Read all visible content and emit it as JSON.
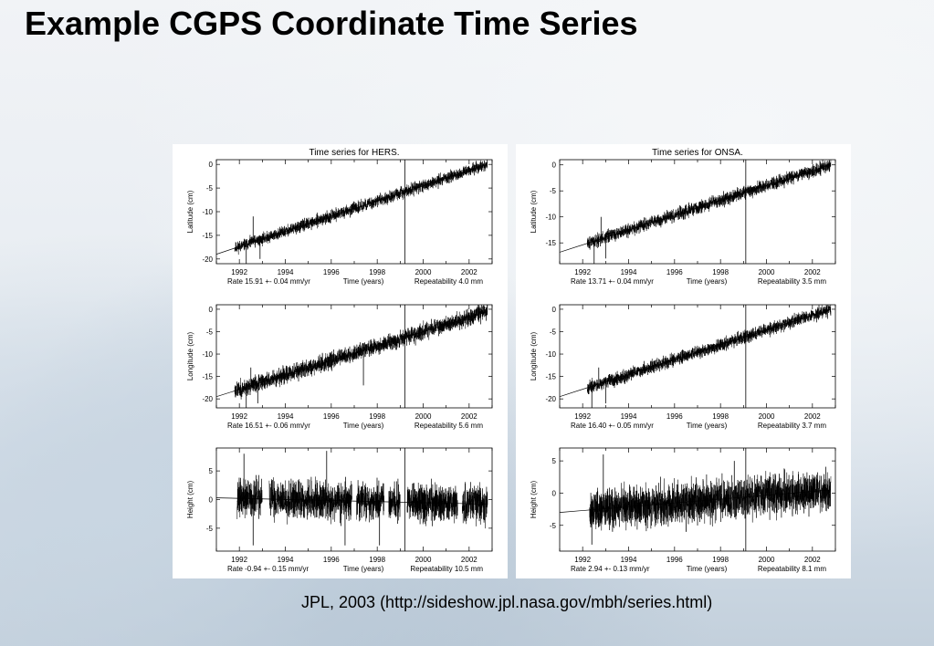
{
  "title": "Example CGPS Coordinate Time Series",
  "caption": "JPL, 2003 (http://sideshow.jpl.nasa.gov/mbh/series.html)",
  "colors": {
    "background": "#e9eef3",
    "panel": "#ffffff",
    "ink": "#000000"
  },
  "chart_data": [
    {
      "station": "HERS",
      "title": "Time series for HERS.",
      "type": "scatter",
      "xlim": [
        1991.0,
        2003.0
      ],
      "xticks": [
        1992,
        1994,
        1996,
        1998,
        2000,
        2002
      ],
      "xlabel": "Time (years)",
      "vertical_line_x": 1999.2,
      "panels": [
        {
          "id": "lat",
          "ylabel": "Latitude (cm)",
          "ylim": [
            -21,
            1
          ],
          "yticks": [
            0,
            -5,
            -10,
            -15,
            -20
          ],
          "rate_text": "Rate  15.91 +- 0.04 mm/yr",
          "repeat_text": "Repeatability 4.0 mm",
          "trend": [
            [
              1991.0,
              -19.0
            ],
            [
              2002.8,
              0.0
            ]
          ],
          "segments": [
            [
              1991.8,
              2002.8
            ]
          ],
          "noise": 0.6,
          "spikes": [
            [
              1992.3,
              -22
            ],
            [
              1992.6,
              -11
            ],
            [
              1992.9,
              -20
            ]
          ],
          "seed": 11
        },
        {
          "id": "lon",
          "ylabel": "Longitude (cm)",
          "ylim": [
            -22,
            1
          ],
          "yticks": [
            0,
            -5,
            -10,
            -15,
            -20
          ],
          "rate_text": "Rate  16.51 +- 0.06 mm/yr",
          "repeat_text": "Repeatability 5.6 mm",
          "trend": [
            [
              1991.0,
              -19.5
            ],
            [
              2002.8,
              -0.5
            ]
          ],
          "segments": [
            [
              1991.8,
              2002.8
            ]
          ],
          "noise": 0.9,
          "spikes": [
            [
              1992.3,
              -24
            ],
            [
              1992.5,
              -13
            ],
            [
              1992.8,
              -21
            ],
            [
              1996.4,
              -9
            ],
            [
              1997.4,
              -17
            ]
          ],
          "seed": 23
        },
        {
          "id": "hgt",
          "ylabel": "Height (cm)",
          "ylim": [
            -9,
            9
          ],
          "yticks": [
            5,
            0,
            -5
          ],
          "rate_text": "Rate  -0.94 +- 0.15 mm/yr",
          "repeat_text": "Repeatability 10.5 mm",
          "trend": [
            [
              1991.0,
              0.3
            ],
            [
              2002.8,
              -0.8
            ]
          ],
          "segments": [
            [
              1991.9,
              1993.0
            ],
            [
              1993.3,
              1996.9
            ],
            [
              1997.1,
              1998.3
            ],
            [
              1998.5,
              1999.0
            ],
            [
              1999.3,
              2001.5
            ],
            [
              2001.7,
              2002.8
            ]
          ],
          "noise": 1.6,
          "spikes": [
            [
              1992.2,
              8
            ],
            [
              1992.6,
              -8
            ],
            [
              1995.8,
              8.5
            ],
            [
              1996.6,
              -8
            ],
            [
              1998.1,
              -8
            ]
          ],
          "seed": 37
        }
      ]
    },
    {
      "station": "ONSA",
      "title": "Time series for ONSA.",
      "type": "scatter",
      "xlim": [
        1991.0,
        2003.0
      ],
      "xticks": [
        1992,
        1994,
        1996,
        1998,
        2000,
        2002
      ],
      "xlabel": "Time (years)",
      "vertical_line_x": 1999.1,
      "panels": [
        {
          "id": "lat",
          "ylabel": "Latitude (cm)",
          "ylim": [
            -19,
            1
          ],
          "yticks": [
            0,
            -5,
            -10,
            -15
          ],
          "rate_text": "Rate  13.71 +- 0.04 mm/yr",
          "repeat_text": "Repeatability 3.5 mm",
          "trend": [
            [
              1991.0,
              -16.8
            ],
            [
              2002.8,
              0.0
            ]
          ],
          "segments": [
            [
              1992.2,
              2002.8
            ]
          ],
          "noise": 0.6,
          "spikes": [
            [
              1992.5,
              -19
            ],
            [
              1992.8,
              -10
            ],
            [
              1993.0,
              -18
            ]
          ],
          "seed": 51
        },
        {
          "id": "lon",
          "ylabel": "Longitude (cm)",
          "ylim": [
            -22,
            1
          ],
          "yticks": [
            0,
            -5,
            -10,
            -15,
            -20
          ],
          "rate_text": "Rate  16.40 +- 0.05 mm/yr",
          "repeat_text": "Repeatability 3.7 mm",
          "trend": [
            [
              1991.0,
              -19.5
            ],
            [
              2002.8,
              0.0
            ]
          ],
          "segments": [
            [
              1992.2,
              2002.8
            ]
          ],
          "noise": 0.7,
          "spikes": [
            [
              1992.4,
              -22
            ],
            [
              1992.7,
              -13
            ],
            [
              1993.0,
              -21
            ]
          ],
          "seed": 67
        },
        {
          "id": "hgt",
          "ylabel": "Height (cm)",
          "ylim": [
            -9,
            7
          ],
          "yticks": [
            5,
            0,
            -5
          ],
          "rate_text": "Rate   2.94 +- 0.13 mm/yr",
          "repeat_text": "Repeatability 8.1 mm",
          "trend": [
            [
              1991.0,
              -3.0
            ],
            [
              2002.8,
              0.5
            ]
          ],
          "segments": [
            [
              1992.3,
              2002.8
            ]
          ],
          "noise": 1.5,
          "spikes": [
            [
              1992.4,
              -8
            ],
            [
              1992.9,
              6
            ],
            [
              1993.3,
              -6
            ],
            [
              1996.5,
              -6
            ],
            [
              1998.6,
              5
            ]
          ],
          "seed": 79
        }
      ]
    }
  ]
}
